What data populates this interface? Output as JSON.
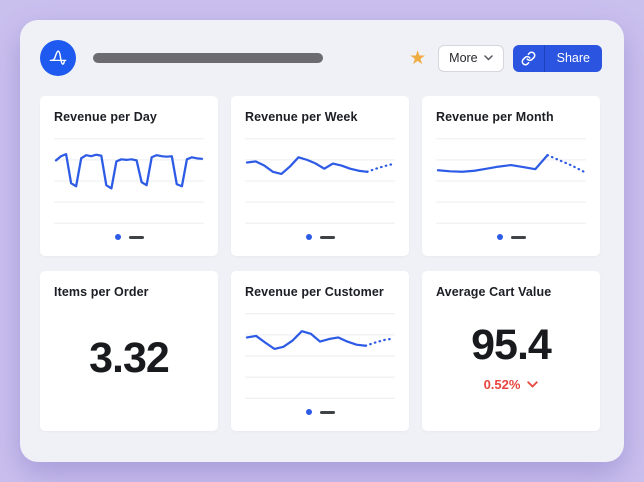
{
  "header": {
    "more_label": "More",
    "share_label": "Share"
  },
  "colors": {
    "background": "#cac0ee",
    "panel": "#eff1f6",
    "card": "#ffffff",
    "brand_blue": "#1e5af0",
    "share_button": "#2b55e0",
    "chart_line": "#2e5be6",
    "gridline": "#ebedf0",
    "legend_dash": "#3f4348",
    "star": "#efac41",
    "delta_negative": "#e8453e",
    "big_number": "#191a1d",
    "title_bar_placeholder": "#6b6b70"
  },
  "cards": [
    {
      "title": "Revenue per Day",
      "type": "line",
      "chart": {
        "values": [
          62,
          70,
          74,
          18,
          12,
          66,
          72,
          70,
          73,
          71,
          14,
          8,
          60,
          64,
          63,
          64,
          62,
          20,
          14,
          68,
          72,
          70,
          69,
          70,
          16,
          12,
          64,
          68,
          66,
          65
        ],
        "dotted_from": null
      }
    },
    {
      "title": "Revenue per Week",
      "type": "line",
      "chart": {
        "values": [
          58,
          60,
          52,
          40,
          36,
          50,
          68,
          63,
          56,
          46,
          56,
          52,
          46,
          42,
          40,
          46,
          51,
          55
        ],
        "dotted_from": 14
      }
    },
    {
      "title": "Revenue per Month",
      "type": "line",
      "chart": {
        "values": [
          43,
          41,
          40,
          42,
          46,
          50,
          53,
          49,
          45,
          72,
          62,
          52,
          40
        ],
        "dotted_from": 9
      }
    },
    {
      "title": "Items per Order",
      "type": "number",
      "value": "3.32"
    },
    {
      "title": "Revenue per Customer",
      "type": "line",
      "chart": {
        "values": [
          58,
          61,
          48,
          36,
          40,
          52,
          70,
          65,
          50,
          55,
          58,
          50,
          44,
          42,
          48,
          53,
          56
        ],
        "dotted_from": 13
      }
    },
    {
      "title": "Average Cart Value",
      "type": "number",
      "value": "95.4",
      "delta": {
        "text": "0.52%",
        "direction": "down"
      }
    }
  ]
}
